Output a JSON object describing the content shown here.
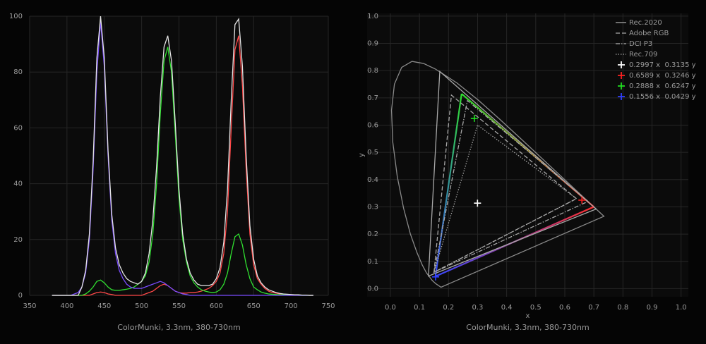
{
  "chart_data": [
    {
      "type": "line",
      "title": "ColorMunki, 3.3nm, 380-730nm",
      "xlim": [
        350,
        750
      ],
      "xticks": [
        350,
        400,
        450,
        500,
        550,
        600,
        650,
        700,
        750
      ],
      "ylim": [
        0,
        100
      ],
      "yticks": [
        0,
        20,
        40,
        60,
        80,
        100
      ],
      "grid": true,
      "x": [
        380,
        385,
        390,
        395,
        400,
        405,
        410,
        415,
        420,
        425,
        430,
        435,
        440,
        445,
        450,
        455,
        460,
        465,
        470,
        475,
        480,
        485,
        490,
        495,
        500,
        505,
        510,
        515,
        520,
        525,
        530,
        535,
        540,
        545,
        550,
        555,
        560,
        565,
        570,
        575,
        580,
        585,
        590,
        595,
        600,
        605,
        610,
        615,
        620,
        625,
        630,
        635,
        640,
        645,
        650,
        655,
        660,
        665,
        670,
        675,
        680,
        685,
        690,
        695,
        700,
        705,
        710,
        715,
        720,
        725,
        730
      ],
      "series": [
        {
          "color": "#ff4848",
          "values": [
            0,
            0,
            0,
            0,
            0,
            0,
            0,
            0,
            0,
            0,
            0,
            0.5,
            1,
            1.2,
            1,
            0.5,
            0.3,
            0,
            0,
            0,
            0,
            0,
            0,
            0,
            0,
            0.5,
            1,
            1.5,
            2.5,
            3.5,
            4,
            3.5,
            2.5,
            1.5,
            1,
            0.8,
            0.8,
            1,
            1,
            1.2,
            1.5,
            2,
            2.5,
            3.5,
            5,
            8,
            15,
            30,
            60,
            88,
            93,
            75,
            45,
            22,
            11,
            6,
            4,
            2.5,
            1.5,
            1,
            0.8,
            0.5,
            0.4,
            0.3,
            0.2,
            0.2,
            0.1,
            0.1,
            0.1,
            0,
            0
          ]
        },
        {
          "color": "#30e030",
          "values": [
            0,
            0,
            0,
            0,
            0,
            0,
            0,
            0,
            0,
            0.5,
            1.5,
            3,
            5,
            5.5,
            4.5,
            3,
            2,
            1.8,
            1.8,
            2,
            2.2,
            2.5,
            3,
            4,
            5,
            7,
            12,
            22,
            40,
            65,
            84,
            89,
            80,
            58,
            35,
            20,
            12,
            7,
            4.5,
            3,
            2,
            1.5,
            1.2,
            1,
            1.2,
            2,
            4,
            8,
            15,
            21,
            22,
            18,
            11,
            6,
            3,
            2,
            1.2,
            0.8,
            0.5,
            0.4,
            0.3,
            0.2,
            0.2,
            0.1,
            0.1,
            0.1,
            0,
            0,
            0,
            0,
            0
          ]
        },
        {
          "color": "#7a4cff",
          "values": [
            0,
            0,
            0,
            0,
            0,
            0,
            0.5,
            1,
            3,
            8,
            20,
            45,
            80,
            98,
            82,
            50,
            27,
            15,
            9,
            6,
            4,
            3,
            2.5,
            2.5,
            2.5,
            3,
            3.5,
            4,
            4.5,
            5,
            4.5,
            3.5,
            2.5,
            1.5,
            1,
            0.5,
            0.3,
            0,
            0,
            0,
            0,
            0,
            0,
            0,
            0,
            0,
            0,
            0,
            0,
            0,
            0,
            0,
            0,
            0,
            0,
            0,
            0,
            0,
            0,
            0,
            0,
            0,
            0,
            0,
            0,
            0,
            0,
            0,
            0,
            0,
            0
          ]
        },
        {
          "color": "#e4e4e4",
          "values": [
            0,
            0,
            0,
            0,
            0,
            0,
            0,
            0,
            3,
            9,
            22,
            48,
            85,
            100,
            85,
            52,
            29,
            17,
            11,
            8,
            6,
            5,
            4.5,
            4,
            5,
            8,
            15,
            27,
            46,
            71,
            89,
            93,
            84,
            62,
            38,
            22,
            13,
            8,
            5.5,
            4,
            3.5,
            3.5,
            3.5,
            4,
            6,
            10,
            19,
            38,
            70,
            97,
            99,
            82,
            50,
            25,
            13,
            7,
            4.5,
            3,
            2,
            1.5,
            1,
            0.7,
            0.5,
            0.4,
            0.3,
            0.2,
            0.2,
            0.1,
            0.1,
            0,
            0
          ]
        }
      ]
    },
    {
      "type": "scatter",
      "title": "ColorMunki, 3.3nm, 380-730nm",
      "xlabel": "x",
      "ylabel": "y",
      "xlim": [
        -0.08,
        1.025
      ],
      "xticks": [
        {
          "value": 0,
          "label": "0.0"
        },
        0.1,
        0.2,
        0.3,
        0.4,
        0.5,
        0.6,
        0.7,
        0.8,
        0.9,
        {
          "value": 1,
          "label": "1.0"
        }
      ],
      "ylim": [
        -0.03,
        1.01
      ],
      "yticks": [
        {
          "value": 0,
          "label": "0.0"
        },
        0.1,
        0.2,
        0.3,
        0.4,
        0.5,
        0.6,
        0.7,
        0.8,
        0.9,
        {
          "value": 1,
          "label": "1.0"
        }
      ],
      "grid": true,
      "legend": "upper right",
      "locus": {
        "color": "#8a8a8a",
        "x": [
          0.1741,
          0.1566,
          0.144,
          0.1241,
          0.1096,
          0.0913,
          0.0687,
          0.0454,
          0.0235,
          0.0082,
          0.0039,
          0.0139,
          0.0389,
          0.0743,
          0.1142,
          0.1547,
          0.2296,
          0.3016,
          0.3731,
          0.4441,
          0.5125,
          0.5752,
          0.627,
          0.6915,
          0.7347
        ],
        "y": [
          0.005,
          0.0177,
          0.0297,
          0.0578,
          0.0868,
          0.1327,
          0.2007,
          0.295,
          0.4127,
          0.5384,
          0.6548,
          0.7502,
          0.812,
          0.8338,
          0.8262,
          0.8059,
          0.7543,
          0.6923,
          0.6245,
          0.5547,
          0.4866,
          0.4242,
          0.3725,
          0.3083,
          0.2653
        ]
      },
      "panel_gamut": {
        "colors": [
          "#30e030",
          "#ff3030",
          "#3848ff"
        ],
        "x": [
          0.245,
          0.7,
          0.155
        ],
        "y": [
          0.715,
          0.3,
          0.045
        ]
      },
      "series": [
        {
          "name": "Rec.2020",
          "color": "#a8a8a8",
          "style": "solid",
          "x": [
            0.708,
            0.17,
            0.131
          ],
          "y": [
            0.292,
            0.797,
            0.046
          ]
        },
        {
          "name": "Adobe RGB",
          "color": "#a8a8a8",
          "style": "dashed",
          "x": [
            0.64,
            0.21,
            0.15
          ],
          "y": [
            0.33,
            0.71,
            0.06
          ]
        },
        {
          "name": "DCI P3",
          "color": "#a8a8a8",
          "style": "dashdot",
          "x": [
            0.68,
            0.265,
            0.15
          ],
          "y": [
            0.32,
            0.69,
            0.06
          ]
        },
        {
          "name": "Rec.709",
          "color": "#a8a8a8",
          "style": "dotted",
          "x": [
            0.64,
            0.3,
            0.15
          ],
          "y": [
            0.33,
            0.6,
            0.06
          ]
        },
        {
          "name": "0.2997 x  0.3135 y",
          "color": "#ffffff",
          "marker": "plus",
          "x": [
            0.2997
          ],
          "y": [
            0.3135
          ]
        },
        {
          "name": "0.6589 x  0.3246 y",
          "color": "#ff2020",
          "marker": "plus",
          "x": [
            0.6589
          ],
          "y": [
            0.3246
          ]
        },
        {
          "name": "0.2888 x  0.6247 y",
          "color": "#20e020",
          "marker": "plus",
          "x": [
            0.2888
          ],
          "y": [
            0.6247
          ]
        },
        {
          "name": "0.1556 x  0.0429 y",
          "color": "#3040ff",
          "marker": "plus",
          "x": [
            0.1556
          ],
          "y": [
            0.0429
          ]
        }
      ]
    }
  ]
}
